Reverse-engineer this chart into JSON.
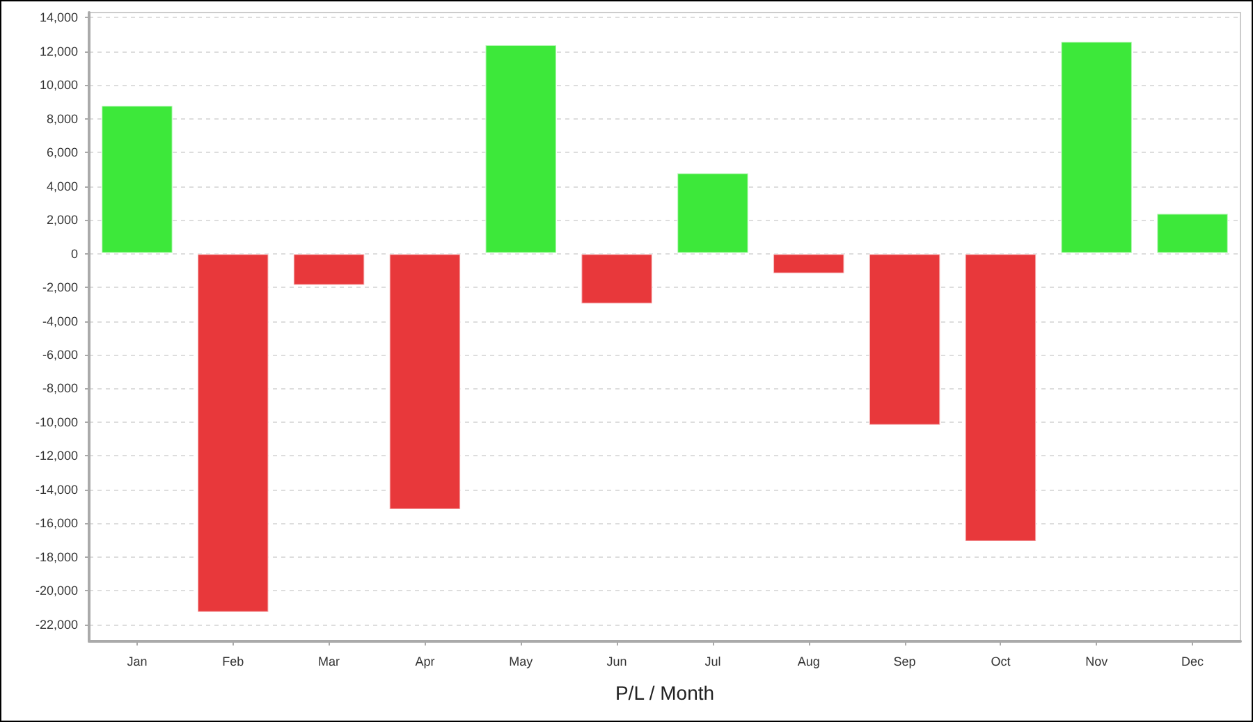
{
  "chart_data": {
    "type": "bar",
    "xlabel": "P/L / Month",
    "categories": [
      "Jan",
      "Feb",
      "Mar",
      "Apr",
      "May",
      "Jun",
      "Jul",
      "Aug",
      "Sep",
      "Oct",
      "Nov",
      "Dec"
    ],
    "values": [
      8800,
      -21300,
      -1900,
      -15200,
      12400,
      -3000,
      4800,
      -1200,
      -10200,
      -17100,
      12600,
      2400
    ],
    "colors": [
      "#3de83a",
      "#e8383b",
      "#e8383b",
      "#e8383b",
      "#3de83a",
      "#e8383b",
      "#3de83a",
      "#e8383b",
      "#e8383b",
      "#e8383b",
      "#3de83a",
      "#3de83a"
    ],
    "ylim": [
      -23000,
      14300
    ],
    "yticks": [
      {
        "value": -22000,
        "label": "-22,000"
      },
      {
        "value": -20000,
        "label": "-20,000"
      },
      {
        "value": -18000,
        "label": "-18,000"
      },
      {
        "value": -16000,
        "label": "-16,000"
      },
      {
        "value": -14000,
        "label": "-14,000"
      },
      {
        "value": -12000,
        "label": "-12,000"
      },
      {
        "value": -10000,
        "label": "-10,000"
      },
      {
        "value": -8000,
        "label": "-8,000"
      },
      {
        "value": -6000,
        "label": "-6,000"
      },
      {
        "value": -4000,
        "label": "-4,000"
      },
      {
        "value": -2000,
        "label": "-2,000"
      },
      0,
      {
        "value": 2000,
        "label": "2,000"
      },
      {
        "value": 4000,
        "label": "4,000"
      },
      {
        "value": 6000,
        "label": "6,000"
      },
      {
        "value": 8000,
        "label": "8,000"
      },
      {
        "value": 10000,
        "label": "10,000"
      },
      {
        "value": 12000,
        "label": "12,000"
      },
      {
        "value": 14000,
        "label": "14,000"
      }
    ],
    "grid": "y"
  }
}
